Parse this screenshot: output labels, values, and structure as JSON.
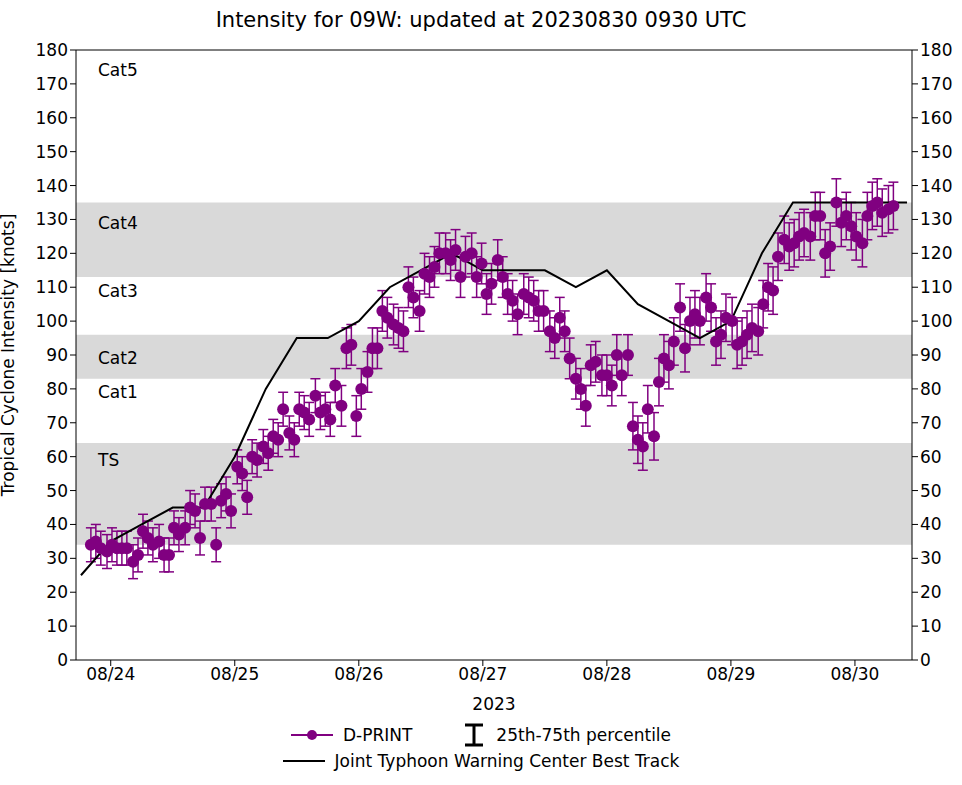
{
  "chart_data": {
    "type": "scatter",
    "title": "Intensity for 09W: updated at 20230830 0930 UTC",
    "x_label": "2023",
    "y_label": "Tropical Cyclone Intensity [knots]",
    "xlim": [
      23.72,
      30.46
    ],
    "xticks": [
      {
        "value": 24,
        "label": "08/24"
      },
      {
        "value": 25,
        "label": "08/25"
      },
      {
        "value": 26,
        "label": "08/26"
      },
      {
        "value": 27,
        "label": "08/27"
      },
      {
        "value": 28,
        "label": "08/28"
      },
      {
        "value": 29,
        "label": "08/29"
      },
      {
        "value": 30,
        "label": "08/30"
      }
    ],
    "ylim": [
      0,
      180
    ],
    "yticks": [
      0,
      10,
      20,
      30,
      40,
      50,
      60,
      70,
      80,
      90,
      100,
      110,
      120,
      130,
      140,
      150,
      160,
      170,
      180
    ],
    "y2lim": [
      0,
      180
    ],
    "y2ticks": [
      0,
      10,
      20,
      30,
      40,
      50,
      60,
      70,
      80,
      90,
      100,
      110,
      120,
      130,
      140,
      150,
      160,
      170,
      180
    ],
    "grid": false,
    "legend": "bottom",
    "bands": [
      {
        "from": 34,
        "to": 64
      },
      {
        "from": 83,
        "to": 96
      },
      {
        "from": 113,
        "to": 135
      }
    ],
    "band_labels": [
      {
        "label": "Cat5",
        "y": 174
      },
      {
        "label": "Cat4",
        "y": 129
      },
      {
        "label": "Cat3",
        "y": 109
      },
      {
        "label": "Cat2",
        "y": 89
      },
      {
        "label": "Cat1",
        "y": 79
      },
      {
        "label": "TS",
        "y": 59
      }
    ],
    "series": [
      {
        "name": "D-PRINT",
        "type": "scatter",
        "color": "#800080",
        "marker": "o",
        "error_name": "25th-75th percentile",
        "x": [
          23.84,
          23.88,
          23.92,
          23.97,
          24.01,
          24.05,
          24.09,
          24.13,
          24.18,
          24.22,
          24.26,
          24.3,
          24.34,
          24.39,
          24.43,
          24.47,
          24.51,
          24.55,
          24.6,
          24.64,
          24.68,
          24.72,
          24.76,
          24.81,
          24.85,
          24.89,
          24.93,
          24.97,
          25.02,
          25.06,
          25.1,
          25.14,
          25.18,
          25.23,
          25.27,
          25.31,
          25.35,
          25.39,
          25.44,
          25.48,
          25.52,
          25.56,
          25.6,
          25.65,
          25.69,
          25.73,
          25.77,
          25.81,
          25.86,
          25.9,
          25.94,
          25.98,
          26.02,
          26.07,
          26.11,
          26.15,
          26.19,
          26.23,
          26.28,
          26.32,
          26.36,
          26.4,
          26.44,
          26.49,
          26.53,
          26.57,
          26.61,
          26.65,
          26.7,
          26.74,
          26.78,
          26.82,
          26.86,
          26.91,
          26.95,
          26.99,
          27.03,
          27.07,
          27.12,
          27.16,
          27.2,
          27.24,
          27.28,
          27.33,
          27.37,
          27.41,
          27.45,
          27.49,
          27.54,
          27.58,
          27.62,
          27.66,
          27.7,
          27.75,
          27.79,
          27.83,
          27.87,
          27.91,
          27.96,
          28.0,
          28.04,
          28.08,
          28.12,
          28.17,
          28.21,
          28.25,
          28.29,
          28.33,
          28.38,
          28.42,
          28.46,
          28.5,
          28.54,
          28.59,
          28.63,
          28.67,
          28.71,
          28.75,
          28.8,
          28.84,
          28.88,
          28.92,
          28.96,
          29.01,
          29.05,
          29.09,
          29.13,
          29.17,
          29.22,
          29.26,
          29.3,
          29.34,
          29.38,
          29.43,
          29.47,
          29.51,
          29.55,
          29.59,
          29.64,
          29.68,
          29.72,
          29.76,
          29.8,
          29.85,
          29.89,
          29.93,
          29.97,
          30.01,
          30.06,
          30.1,
          30.14,
          30.18,
          30.22,
          30.27,
          30.31
        ],
        "values": [
          34,
          35,
          33,
          32,
          34,
          33,
          33,
          33,
          29,
          31,
          38,
          36,
          34,
          35,
          31,
          31,
          39,
          37,
          39,
          45,
          44,
          36,
          46,
          46,
          34,
          47,
          49,
          44,
          57,
          55,
          48,
          60,
          59,
          63,
          61,
          66,
          65,
          74,
          67,
          65,
          74,
          73,
          71,
          78,
          73,
          74,
          71,
          81,
          75,
          92,
          93,
          72,
          80,
          85,
          92,
          92,
          103,
          101,
          99,
          98,
          97,
          110,
          107,
          103,
          114,
          113,
          116,
          120,
          120,
          118,
          121,
          113,
          119,
          120,
          113,
          117,
          108,
          111,
          118,
          113,
          108,
          106,
          102,
          108,
          107,
          106,
          103,
          103,
          97,
          95,
          101,
          97,
          89,
          83,
          80,
          75,
          87,
          88,
          84,
          84,
          81,
          90,
          84,
          90,
          69,
          65,
          63,
          74,
          66,
          82,
          89,
          87,
          94,
          104,
          92,
          100,
          102,
          100,
          107,
          104,
          94,
          96,
          101,
          100,
          93,
          94,
          96,
          98,
          97,
          105,
          110,
          109,
          119,
          124,
          122,
          123,
          125,
          126,
          125,
          131,
          131,
          120,
          122,
          135,
          129,
          131,
          128,
          125,
          123,
          131,
          134,
          135,
          132,
          133,
          134
        ],
        "error": [
          5,
          5,
          5,
          5,
          5,
          5,
          5,
          5,
          5,
          5,
          5,
          5,
          5,
          5,
          5,
          5,
          5,
          5,
          5,
          5,
          5,
          5,
          5,
          5,
          5,
          5,
          5,
          5,
          5,
          5,
          5,
          5,
          5,
          5,
          5,
          5,
          5,
          5,
          5,
          5,
          5,
          5,
          5,
          5,
          5,
          5,
          5,
          5,
          6,
          6,
          6,
          6,
          6,
          6,
          6,
          6,
          6,
          6,
          6,
          6,
          6,
          6,
          6,
          6,
          6,
          6,
          6,
          6,
          6,
          6,
          6,
          6,
          6,
          6,
          6,
          6,
          6,
          6,
          6,
          6,
          6,
          6,
          6,
          6,
          6,
          6,
          6,
          6,
          6,
          6,
          6,
          6,
          6,
          6,
          6,
          6,
          6,
          6,
          6,
          6,
          6,
          6,
          6,
          6,
          7,
          7,
          7,
          7,
          7,
          7,
          7,
          7,
          7,
          7,
          7,
          7,
          7,
          7,
          7,
          7,
          7,
          7,
          7,
          7,
          7,
          7,
          7,
          7,
          7,
          7,
          7,
          7,
          7,
          7,
          7,
          7,
          7,
          7,
          7,
          7,
          7,
          7,
          7,
          7,
          7,
          7,
          7,
          7,
          7,
          7,
          7,
          7,
          7,
          7,
          7
        ]
      },
      {
        "name": "Joint Typhoon Warning Center Best Track",
        "type": "line",
        "color": "#000000",
        "line_style": "solid",
        "x": [
          23.76,
          24,
          24.25,
          24.5,
          24.75,
          25,
          25.25,
          25.5,
          25.75,
          26,
          26.25,
          26.5,
          26.75,
          27,
          27.25,
          27.5,
          27.75,
          28,
          28.25,
          28.5,
          28.75,
          29,
          29.25,
          29.5,
          29.75,
          30,
          30.25,
          30.42
        ],
        "values": [
          25,
          35,
          40,
          45,
          45,
          60,
          80,
          95,
          95,
          100,
          110,
          115,
          120,
          115,
          115,
          115,
          110,
          115,
          105,
          100,
          95,
          100,
          120,
          135,
          135,
          135,
          135,
          135
        ]
      }
    ]
  }
}
